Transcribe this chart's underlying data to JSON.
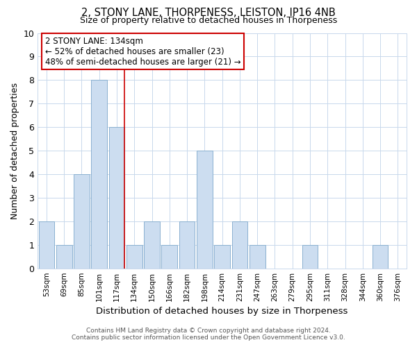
{
  "title": "2, STONY LANE, THORPENESS, LEISTON, IP16 4NB",
  "subtitle": "Size of property relative to detached houses in Thorpeness",
  "xlabel": "Distribution of detached houses by size in Thorpeness",
  "ylabel": "Number of detached properties",
  "bin_labels": [
    "53sqm",
    "69sqm",
    "85sqm",
    "101sqm",
    "117sqm",
    "134sqm",
    "150sqm",
    "166sqm",
    "182sqm",
    "198sqm",
    "214sqm",
    "231sqm",
    "247sqm",
    "263sqm",
    "279sqm",
    "295sqm",
    "311sqm",
    "328sqm",
    "344sqm",
    "360sqm",
    "376sqm"
  ],
  "bar_values": [
    2,
    1,
    4,
    8,
    6,
    1,
    2,
    1,
    2,
    5,
    1,
    2,
    1,
    0,
    0,
    1,
    0,
    0,
    0,
    1,
    0
  ],
  "highlight_index": 4,
  "bar_color": "#ccddf0",
  "bar_edge_color": "#8ab0d0",
  "highlight_line_color": "#cc0000",
  "annotation_line1": "2 STONY LANE: 134sqm",
  "annotation_line2": "← 52% of detached houses are smaller (23)",
  "annotation_line3": "48% of semi-detached houses are larger (21) →",
  "annotation_box_edge": "#cc0000",
  "ylim": [
    0,
    10
  ],
  "yticks": [
    0,
    1,
    2,
    3,
    4,
    5,
    6,
    7,
    8,
    9,
    10
  ],
  "footer_line1": "Contains HM Land Registry data © Crown copyright and database right 2024.",
  "footer_line2": "Contains public sector information licensed under the Open Government Licence v3.0.",
  "background_color": "#ffffff",
  "grid_color": "#c8d8ec"
}
